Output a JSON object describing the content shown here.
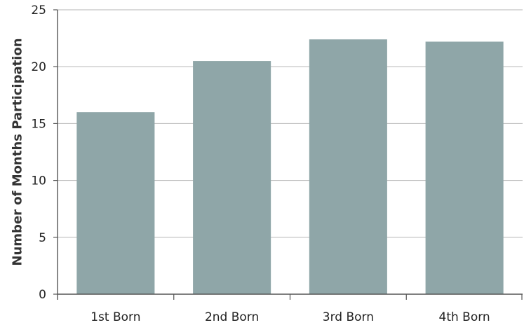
{
  "chart_data": {
    "type": "bar",
    "title": "",
    "xlabel": "",
    "ylabel": "Number of Months Participation",
    "categories": [
      "1st Born",
      "2nd Born",
      "3rd Born",
      "4th Born"
    ],
    "values": [
      16.0,
      20.5,
      22.4,
      22.2
    ],
    "ylim": [
      0,
      25
    ],
    "yticks": [
      0,
      5,
      10,
      15,
      20,
      25
    ],
    "grid": true,
    "legend": "none",
    "colors": {
      "bar": "#8fa6a8",
      "grid": "#b5b5b5",
      "axis": "#555555"
    }
  }
}
